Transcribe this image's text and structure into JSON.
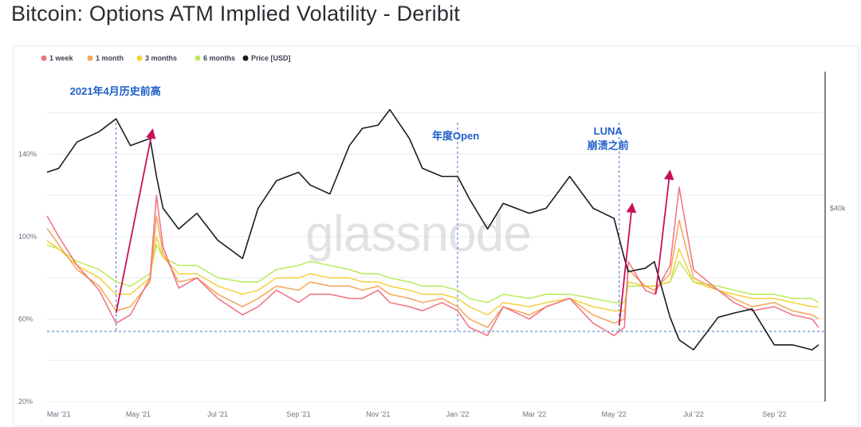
{
  "page": {
    "title": "Bitcoin: Options ATM Implied Volatility - Deribit"
  },
  "watermark": "glassnode",
  "colors": {
    "iv_1w": "#f07080",
    "iv_1m": "#f5a455",
    "iv_3m": "#f2d23c",
    "iv_6m": "#b8ec5a",
    "price": "#1c1c1c",
    "arrow": "#c8105a",
    "annotation": "#1f5fc8",
    "grid": "#e9ebef",
    "guide": "#3a6fcf"
  },
  "chart_data": {
    "type": "line",
    "title": "Bitcoin: Options ATM Implied Volatility - Deribit",
    "legend_position": "top-left",
    "grid": true,
    "x_ticks": [
      "Mar '21",
      "May '21",
      "Jul '21",
      "Sep '21",
      "Nov '21",
      "Jan '22",
      "Mar '22",
      "May '22",
      "Jul '22",
      "Sep '22"
    ],
    "x_range": [
      "2021-02-20",
      "2022-10-10"
    ],
    "y_left": {
      "ticks": [
        "20%",
        "60%",
        "100%",
        "140%"
      ],
      "range": [
        20,
        180
      ]
    },
    "y_right": {
      "ticks": [
        "$40k"
      ],
      "scale": "log"
    },
    "x": [
      "2021-02-20",
      "2021-03-01",
      "2021-03-15",
      "2021-04-01",
      "2021-04-14",
      "2021-04-25",
      "2021-05-10",
      "2021-05-15",
      "2021-05-20",
      "2021-06-01",
      "2021-06-15",
      "2021-07-01",
      "2021-07-20",
      "2021-08-01",
      "2021-08-15",
      "2021-09-01",
      "2021-09-10",
      "2021-09-25",
      "2021-10-10",
      "2021-10-20",
      "2021-11-01",
      "2021-11-10",
      "2021-11-25",
      "2021-12-05",
      "2021-12-20",
      "2022-01-01",
      "2022-01-10",
      "2022-01-24",
      "2022-02-05",
      "2022-02-25",
      "2022-03-10",
      "2022-03-28",
      "2022-04-15",
      "2022-05-01",
      "2022-05-09",
      "2022-05-12",
      "2022-05-25",
      "2022-06-01",
      "2022-06-13",
      "2022-06-20",
      "2022-07-01",
      "2022-07-20",
      "2022-08-01",
      "2022-08-15",
      "2022-09-01",
      "2022-09-15",
      "2022-09-30",
      "2022-10-05"
    ],
    "series": [
      {
        "name": "1 week",
        "values": [
          110,
          100,
          86,
          74,
          58,
          62,
          80,
          120,
          95,
          75,
          80,
          70,
          62,
          66,
          74,
          68,
          72,
          72,
          70,
          70,
          74,
          68,
          66,
          64,
          68,
          64,
          56,
          52,
          66,
          60,
          66,
          70,
          58,
          52,
          56,
          88,
          74,
          72,
          86,
          124,
          84,
          74,
          68,
          64,
          66,
          62,
          60,
          56
        ]
      },
      {
        "name": "1 month",
        "values": [
          104,
          96,
          84,
          76,
          64,
          66,
          78,
          110,
          92,
          78,
          80,
          72,
          66,
          70,
          76,
          74,
          78,
          76,
          76,
          74,
          76,
          72,
          70,
          68,
          70,
          66,
          60,
          56,
          66,
          62,
          66,
          70,
          62,
          58,
          60,
          84,
          76,
          74,
          82,
          108,
          80,
          74,
          70,
          66,
          68,
          64,
          62,
          60
        ]
      },
      {
        "name": "3 months",
        "values": [
          98,
          94,
          86,
          80,
          72,
          72,
          80,
          100,
          90,
          82,
          82,
          76,
          72,
          74,
          80,
          80,
          82,
          80,
          80,
          78,
          78,
          76,
          74,
          72,
          72,
          70,
          66,
          62,
          68,
          66,
          68,
          70,
          66,
          64,
          64,
          78,
          76,
          76,
          78,
          94,
          78,
          74,
          72,
          70,
          70,
          68,
          66,
          66
        ]
      },
      {
        "name": "6 months",
        "values": [
          96,
          94,
          88,
          84,
          78,
          76,
          82,
          96,
          90,
          86,
          86,
          80,
          78,
          78,
          84,
          86,
          88,
          86,
          84,
          82,
          82,
          80,
          78,
          76,
          76,
          74,
          70,
          68,
          72,
          70,
          72,
          72,
          70,
          68,
          68,
          76,
          76,
          76,
          78,
          88,
          78,
          76,
          74,
          72,
          72,
          70,
          70,
          68
        ]
      },
      {
        "name": "Price [USD]",
        "values": [
          48000,
          49000,
          56000,
          59000,
          63000,
          55000,
          57000,
          47000,
          40000,
          36000,
          39000,
          34000,
          31000,
          40000,
          46000,
          48000,
          45000,
          43000,
          55000,
          60000,
          61000,
          66000,
          57000,
          49000,
          47000,
          47000,
          42000,
          36000,
          41000,
          39000,
          40000,
          47000,
          40000,
          38000,
          31000,
          29000,
          29500,
          30500,
          23000,
          20500,
          19500,
          23000,
          23500,
          24000,
          20000,
          20000,
          19500,
          20000
        ]
      }
    ],
    "annotations": [
      {
        "text": "2021年4月历史前高",
        "date": "2021-04-14"
      },
      {
        "text": "年度Open",
        "date": "2022-01-01"
      },
      {
        "lines": [
          "LUNA",
          "崩溃之前"
        ],
        "date": "2022-05-05"
      }
    ],
    "reference_line": {
      "value": 54
    },
    "vertical_guides": [
      "2021-04-14",
      "2022-01-01",
      "2022-05-05"
    ],
    "arrows": [
      {
        "from": {
          "date": "2021-04-14",
          "value": 63
        },
        "to": {
          "date": "2021-05-12",
          "value": 152
        }
      },
      {
        "from": {
          "date": "2022-05-05",
          "value": 57
        },
        "to": {
          "date": "2022-05-15",
          "value": 116
        }
      },
      {
        "from": {
          "date": "2022-06-02",
          "value": 72
        },
        "to": {
          "date": "2022-06-13",
          "value": 132
        }
      }
    ]
  }
}
